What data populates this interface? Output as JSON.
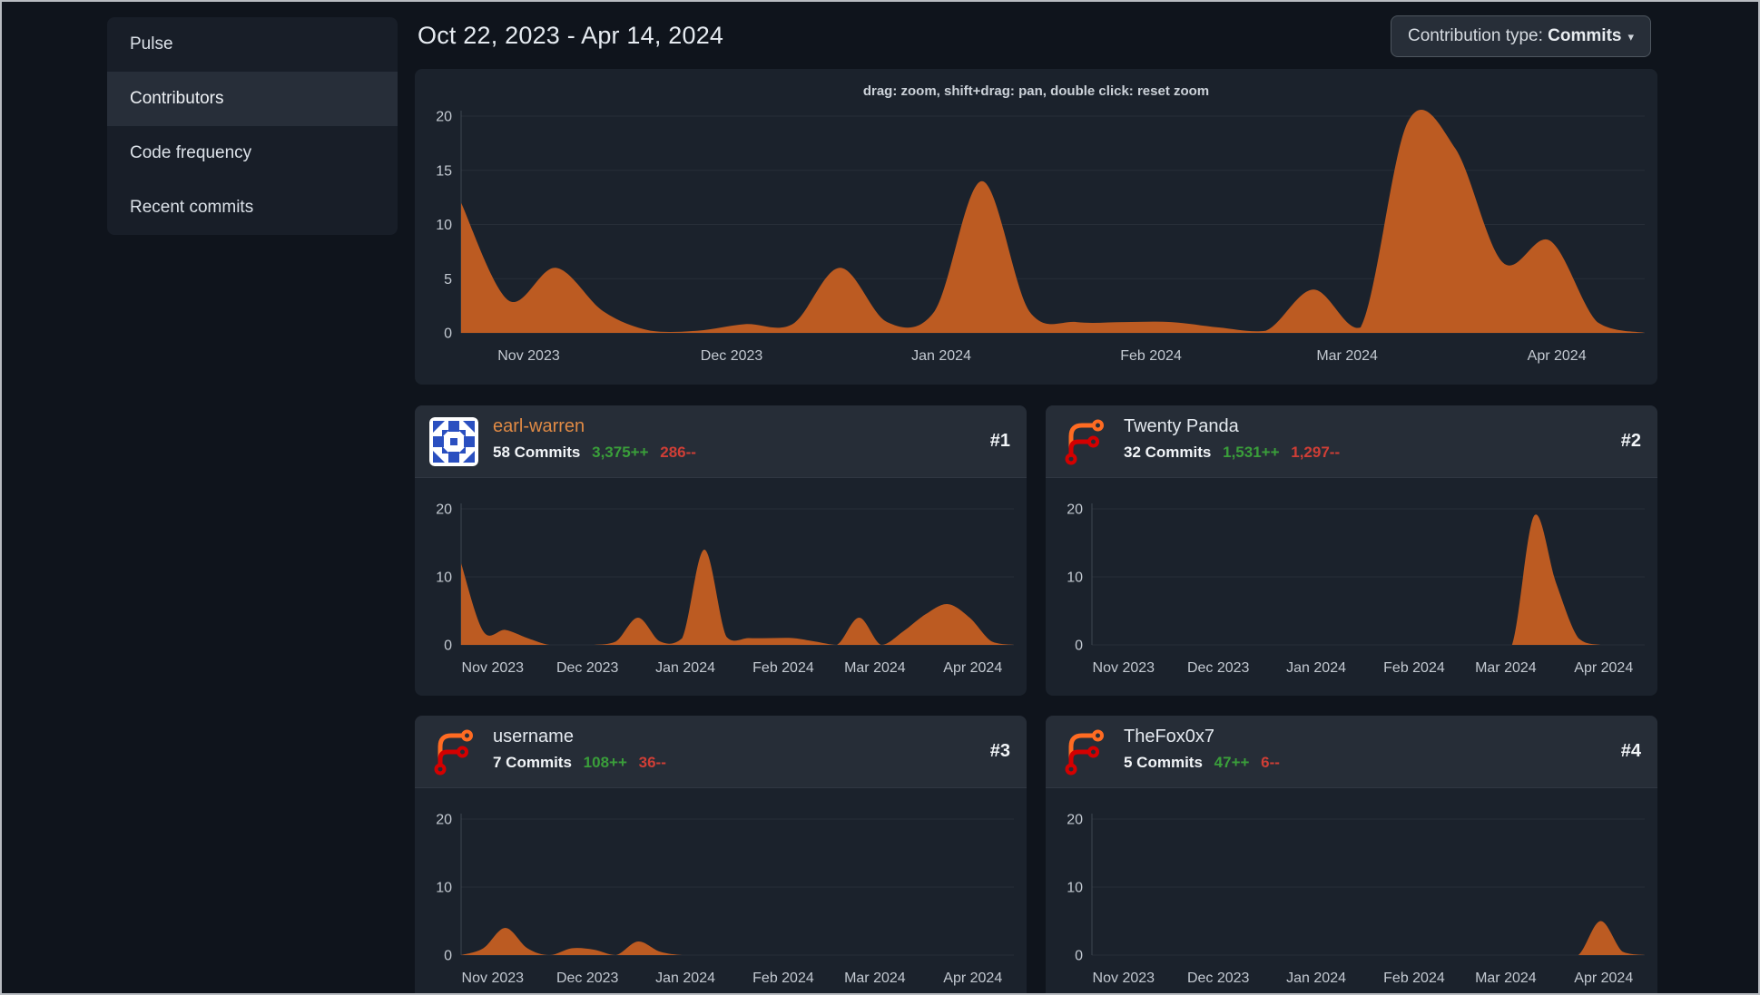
{
  "sidebar": {
    "items": [
      {
        "label": "Pulse",
        "active": false
      },
      {
        "label": "Contributors",
        "active": true
      },
      {
        "label": "Code frequency",
        "active": false
      },
      {
        "label": "Recent commits",
        "active": false
      }
    ]
  },
  "header": {
    "date_range": "Oct 22, 2023 - Apr 14, 2024",
    "contribution_type": {
      "label": "Contribution type:",
      "value": "Commits",
      "caret": "▾"
    }
  },
  "main_chart_hint": "drag: zoom, shift+drag: pan, double click: reset zoom",
  "contributors": [
    {
      "rank": "#1",
      "name": "earl-warren",
      "is_link": true,
      "commits": "58 Commits",
      "additions": "3,375++",
      "deletions": "286--",
      "avatar": "identicon-blue"
    },
    {
      "rank": "#2",
      "name": "Twenty Panda",
      "is_link": false,
      "commits": "32 Commits",
      "additions": "1,531++",
      "deletions": "1,297--",
      "avatar": "forgejo-logo"
    },
    {
      "rank": "#3",
      "name": "username",
      "is_link": false,
      "commits": "7 Commits",
      "additions": "108++",
      "deletions": "36--",
      "avatar": "forgejo-logo"
    },
    {
      "rank": "#4",
      "name": "TheFox0x7",
      "is_link": false,
      "commits": "5 Commits",
      "additions": "47++",
      "deletions": "6--",
      "avatar": "forgejo-logo"
    }
  ],
  "axes": {
    "x_months": [
      {
        "label": "Nov 2023",
        "day": 10
      },
      {
        "label": "Dec 2023",
        "day": 40
      },
      {
        "label": "Jan 2024",
        "day": 71
      },
      {
        "label": "Feb 2024",
        "day": 102
      },
      {
        "label": "Mar 2024",
        "day": 131
      },
      {
        "label": "Apr 2024",
        "day": 162
      }
    ],
    "total_days": 175,
    "y_max": 20,
    "x_unit": "weeks",
    "y_unit": "commits"
  },
  "chart_data": [
    {
      "id": "all-contributions",
      "type": "area",
      "y_ticks": [
        0,
        5,
        10,
        15,
        20
      ],
      "values": [
        12,
        3,
        6,
        2,
        0.2,
        0.2,
        0.8,
        0.8,
        6,
        1,
        2,
        14,
        2,
        1,
        1,
        1,
        0.5,
        0.2,
        4,
        0.5,
        19.5,
        17,
        6.5,
        8.5,
        1,
        0
      ]
    },
    {
      "id": "earl-warren",
      "type": "area",
      "y_ticks": [
        0,
        10,
        20
      ],
      "values": [
        12,
        2,
        2.2,
        1,
        0,
        0,
        0,
        0.5,
        4,
        0.5,
        1,
        14,
        1.2,
        1,
        1,
        1,
        0.5,
        0,
        4,
        0,
        2,
        4.5,
        6,
        4,
        0.5,
        0
      ]
    },
    {
      "id": "twenty-panda",
      "type": "area",
      "y_ticks": [
        0,
        10,
        20
      ],
      "values": [
        0,
        0,
        0,
        0,
        0,
        0,
        0,
        0,
        0,
        0,
        0,
        0,
        0,
        0,
        0,
        0,
        0,
        0,
        0,
        0,
        19,
        9,
        1,
        0,
        0,
        0
      ]
    },
    {
      "id": "username",
      "type": "area",
      "y_ticks": [
        0,
        10,
        20
      ],
      "values": [
        0,
        1,
        4,
        1,
        0,
        1,
        0.8,
        0,
        2,
        0.5,
        0,
        0,
        0,
        0,
        0,
        0,
        0,
        0,
        0,
        0,
        0,
        0,
        0,
        0,
        0,
        0
      ]
    },
    {
      "id": "thefox0x7",
      "type": "area",
      "y_ticks": [
        0,
        10,
        20
      ],
      "values": [
        0,
        0,
        0,
        0,
        0,
        0,
        0,
        0,
        0,
        0,
        0,
        0,
        0,
        0,
        0,
        0,
        0,
        0,
        0,
        0,
        0,
        0,
        0,
        5,
        0.5,
        0
      ]
    }
  ],
  "colors": {
    "area_fill": "#bc5b22",
    "grid_line": "#272e38",
    "axis_line": "#3e4650",
    "axis_text": "#c3c9d1",
    "link_orange": "#e08a45",
    "additions_green": "#3a9e3a",
    "deletions_red": "#cf3e36"
  }
}
